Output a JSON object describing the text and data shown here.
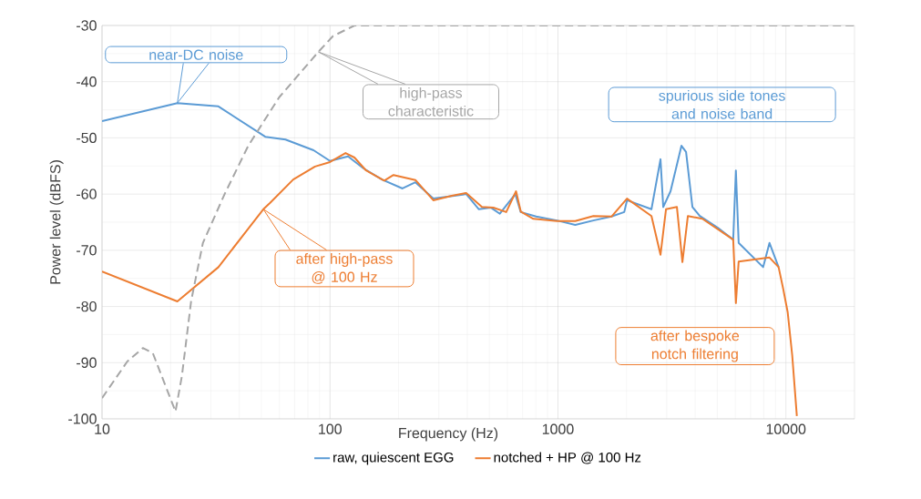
{
  "chart_data": {
    "type": "line",
    "xlabel": "Frequency (Hz)",
    "ylabel": "Power level (dBFS)",
    "log": "x",
    "xlim": [
      10,
      20000
    ],
    "ylim": [
      -100,
      -30
    ],
    "xticks": [
      10,
      100,
      1000,
      10000
    ],
    "yticks": [
      -100,
      -90,
      -80,
      -70,
      -60,
      -50,
      -40,
      -30
    ],
    "grid": true,
    "legend": "bottom",
    "marker": "none",
    "series": [
      {
        "name": "raw, quiescent EGG",
        "color": "#5b9bd5",
        "line_style": "solid",
        "x": [
          10,
          21.4,
          32.4,
          52,
          63.8,
          84.7,
          100,
          120,
          140,
          169,
          208,
          237,
          284,
          351,
          396,
          450,
          507,
          556,
          650,
          687,
          802,
          991,
          1191,
          1430,
          1718,
          1954,
          2009,
          2572,
          2818,
          2897,
          3119,
          3483,
          3648,
          3891,
          4189,
          5024,
          5873,
          6035,
          6207,
          7950,
          8474,
          9290
        ],
        "values": [
          -47,
          -43.8,
          -44.4,
          -49.8,
          -50.3,
          -52.2,
          -54.1,
          -53.3,
          -55.4,
          -57.4,
          -59,
          -57.9,
          -60.8,
          -60.3,
          -60,
          -62.7,
          -62.4,
          -63.5,
          -60,
          -63.2,
          -64,
          -64.7,
          -65.5,
          -64.7,
          -64,
          -63.2,
          -61.1,
          -62.7,
          -53.8,
          -62.3,
          -59.5,
          -51.4,
          -52.5,
          -62.3,
          -63.9,
          -66,
          -68.1,
          -55.8,
          -68.7,
          -73,
          -68.7,
          -73
        ]
      },
      {
        "name": "notched + HP @ 100 Hz",
        "color": "#ed7d31",
        "line_style": "solid",
        "x": [
          10,
          21.4,
          32.4,
          51,
          54.5,
          69,
          86,
          100,
          117,
          128,
          144,
          158,
          173,
          190,
          237,
          284,
          342,
          396,
          464,
          521,
          593,
          655,
          687,
          780,
          991,
          1191,
          1430,
          1718,
          2009,
          2572,
          2818,
          2979,
          3326,
          3516,
          3716,
          4300,
          5873,
          6035,
          6207,
          8474,
          9290,
          9723,
          10180,
          10660,
          11170
        ],
        "values": [
          -73.8,
          -79.1,
          -73,
          -62.7,
          -61.6,
          -57.4,
          -55.1,
          -54.3,
          -52.7,
          -53.5,
          -55.8,
          -56.7,
          -57.6,
          -56.6,
          -57.5,
          -61.1,
          -60.3,
          -59.8,
          -62.3,
          -62.4,
          -63.2,
          -59.5,
          -63.1,
          -64.4,
          -64.8,
          -64.8,
          -63.9,
          -64,
          -60.8,
          -63.9,
          -70.8,
          -62.7,
          -62.3,
          -72.1,
          -63.9,
          -64.4,
          -68.1,
          -79.4,
          -72,
          -71.3,
          -73,
          -76.8,
          -81,
          -88.7,
          -99.5
        ]
      },
      {
        "color": "#a6a6a6",
        "line_style": "dashed",
        "x": [
          10,
          12.9,
          15.1,
          16.7,
          21,
          22.4,
          24.6,
          27.7,
          34.5,
          43.8,
          59.8,
          88.9,
          103,
          128,
          20000
        ],
        "values": [
          -96.3,
          -89.8,
          -87.4,
          -88.3,
          -98.7,
          -92.4,
          -79,
          -68.7,
          -60,
          -51.4,
          -42.8,
          -34.7,
          -31.9,
          -30,
          -30
        ]
      }
    ],
    "annotations": [
      {
        "text": "near-DC noise",
        "x": 21.4,
        "y": -43.8
      },
      "high-pass characteristic",
      "spurious side tones and noise band",
      "after high-pass @ 100 Hz",
      "after bespoke notch filtering"
    ]
  }
}
